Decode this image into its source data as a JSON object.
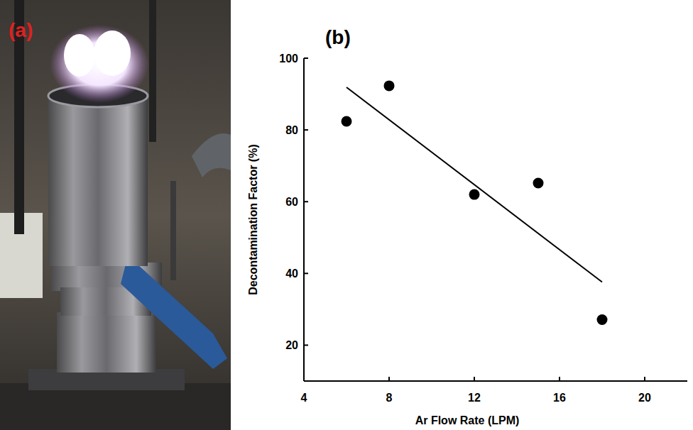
{
  "photo": {
    "label": "(a)"
  },
  "chart_data": {
    "type": "scatter",
    "panel_label": "(b)",
    "x_label": "Ar Flow Rate (LPM)",
    "y_label": "Decontamination Factor (%)",
    "x": [
      6,
      8,
      12,
      15,
      18
    ],
    "series": [
      {
        "type": "scatter",
        "marker": "circle",
        "color": "#000000",
        "values": [
          82.4,
          92.3,
          62,
          65.2,
          27.1
        ]
      },
      {
        "type": "line",
        "line_style": "solid",
        "color": "#000000",
        "x": [
          6,
          18
        ],
        "values": [
          91.9,
          37.6
        ]
      }
    ],
    "xlim": [
      4,
      22
    ],
    "ylim": [
      10,
      100
    ],
    "xticks": [
      4,
      8,
      12,
      16,
      20
    ],
    "yticks": [
      20,
      40,
      60,
      80,
      100
    ],
    "grid": false
  }
}
